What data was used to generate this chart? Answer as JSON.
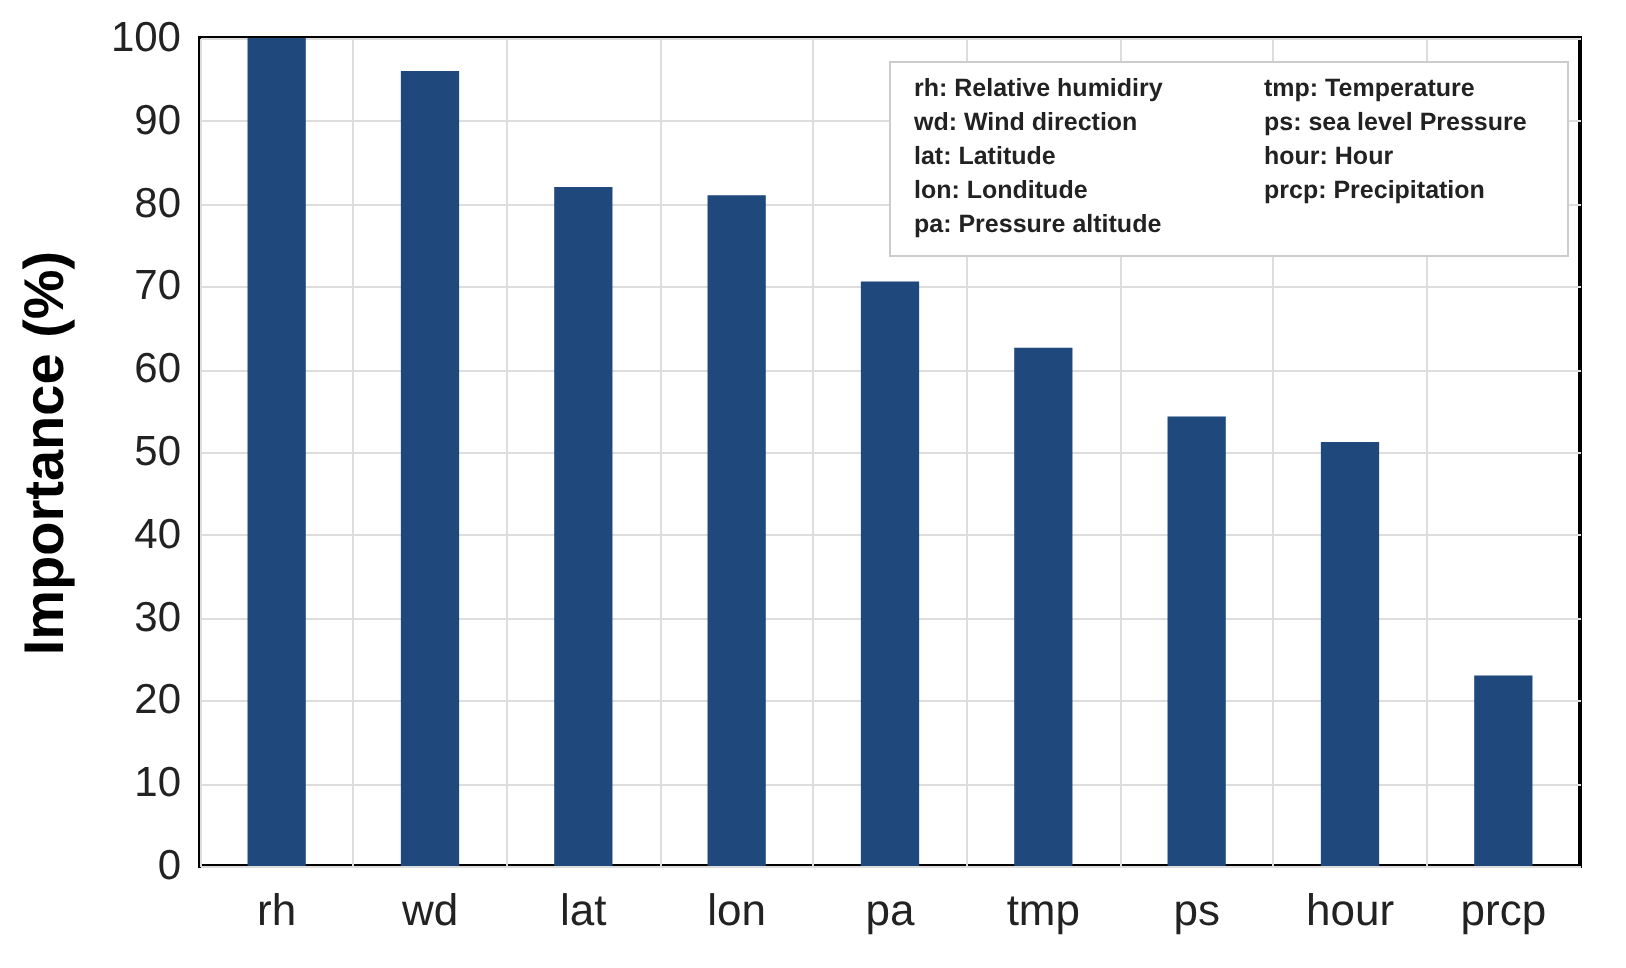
{
  "chart_data": {
    "type": "bar",
    "ylabel": "Importance (%)",
    "categories": [
      "rh",
      "wd",
      "lat",
      "lon",
      "pa",
      "tmp",
      "ps",
      "hour",
      "prcp"
    ],
    "values": [
      100,
      96,
      82,
      81,
      70.6,
      62.6,
      54.3,
      51.2,
      23
    ],
    "color": "#1f497d",
    "ylim": [
      0,
      100
    ],
    "yticks": [
      0,
      10,
      20,
      30,
      40,
      50,
      60,
      70,
      80,
      90,
      100
    ],
    "grid": true,
    "annotations": [
      "rh: Relative humidiry",
      "wd: Wind direction",
      "lat: Latitude",
      "lon: Londitude",
      "pa: Pressure altitude",
      "tmp: Temperature",
      "ps: sea level Pressure",
      "hour: Hour",
      "prcp: Precipitation"
    ]
  }
}
